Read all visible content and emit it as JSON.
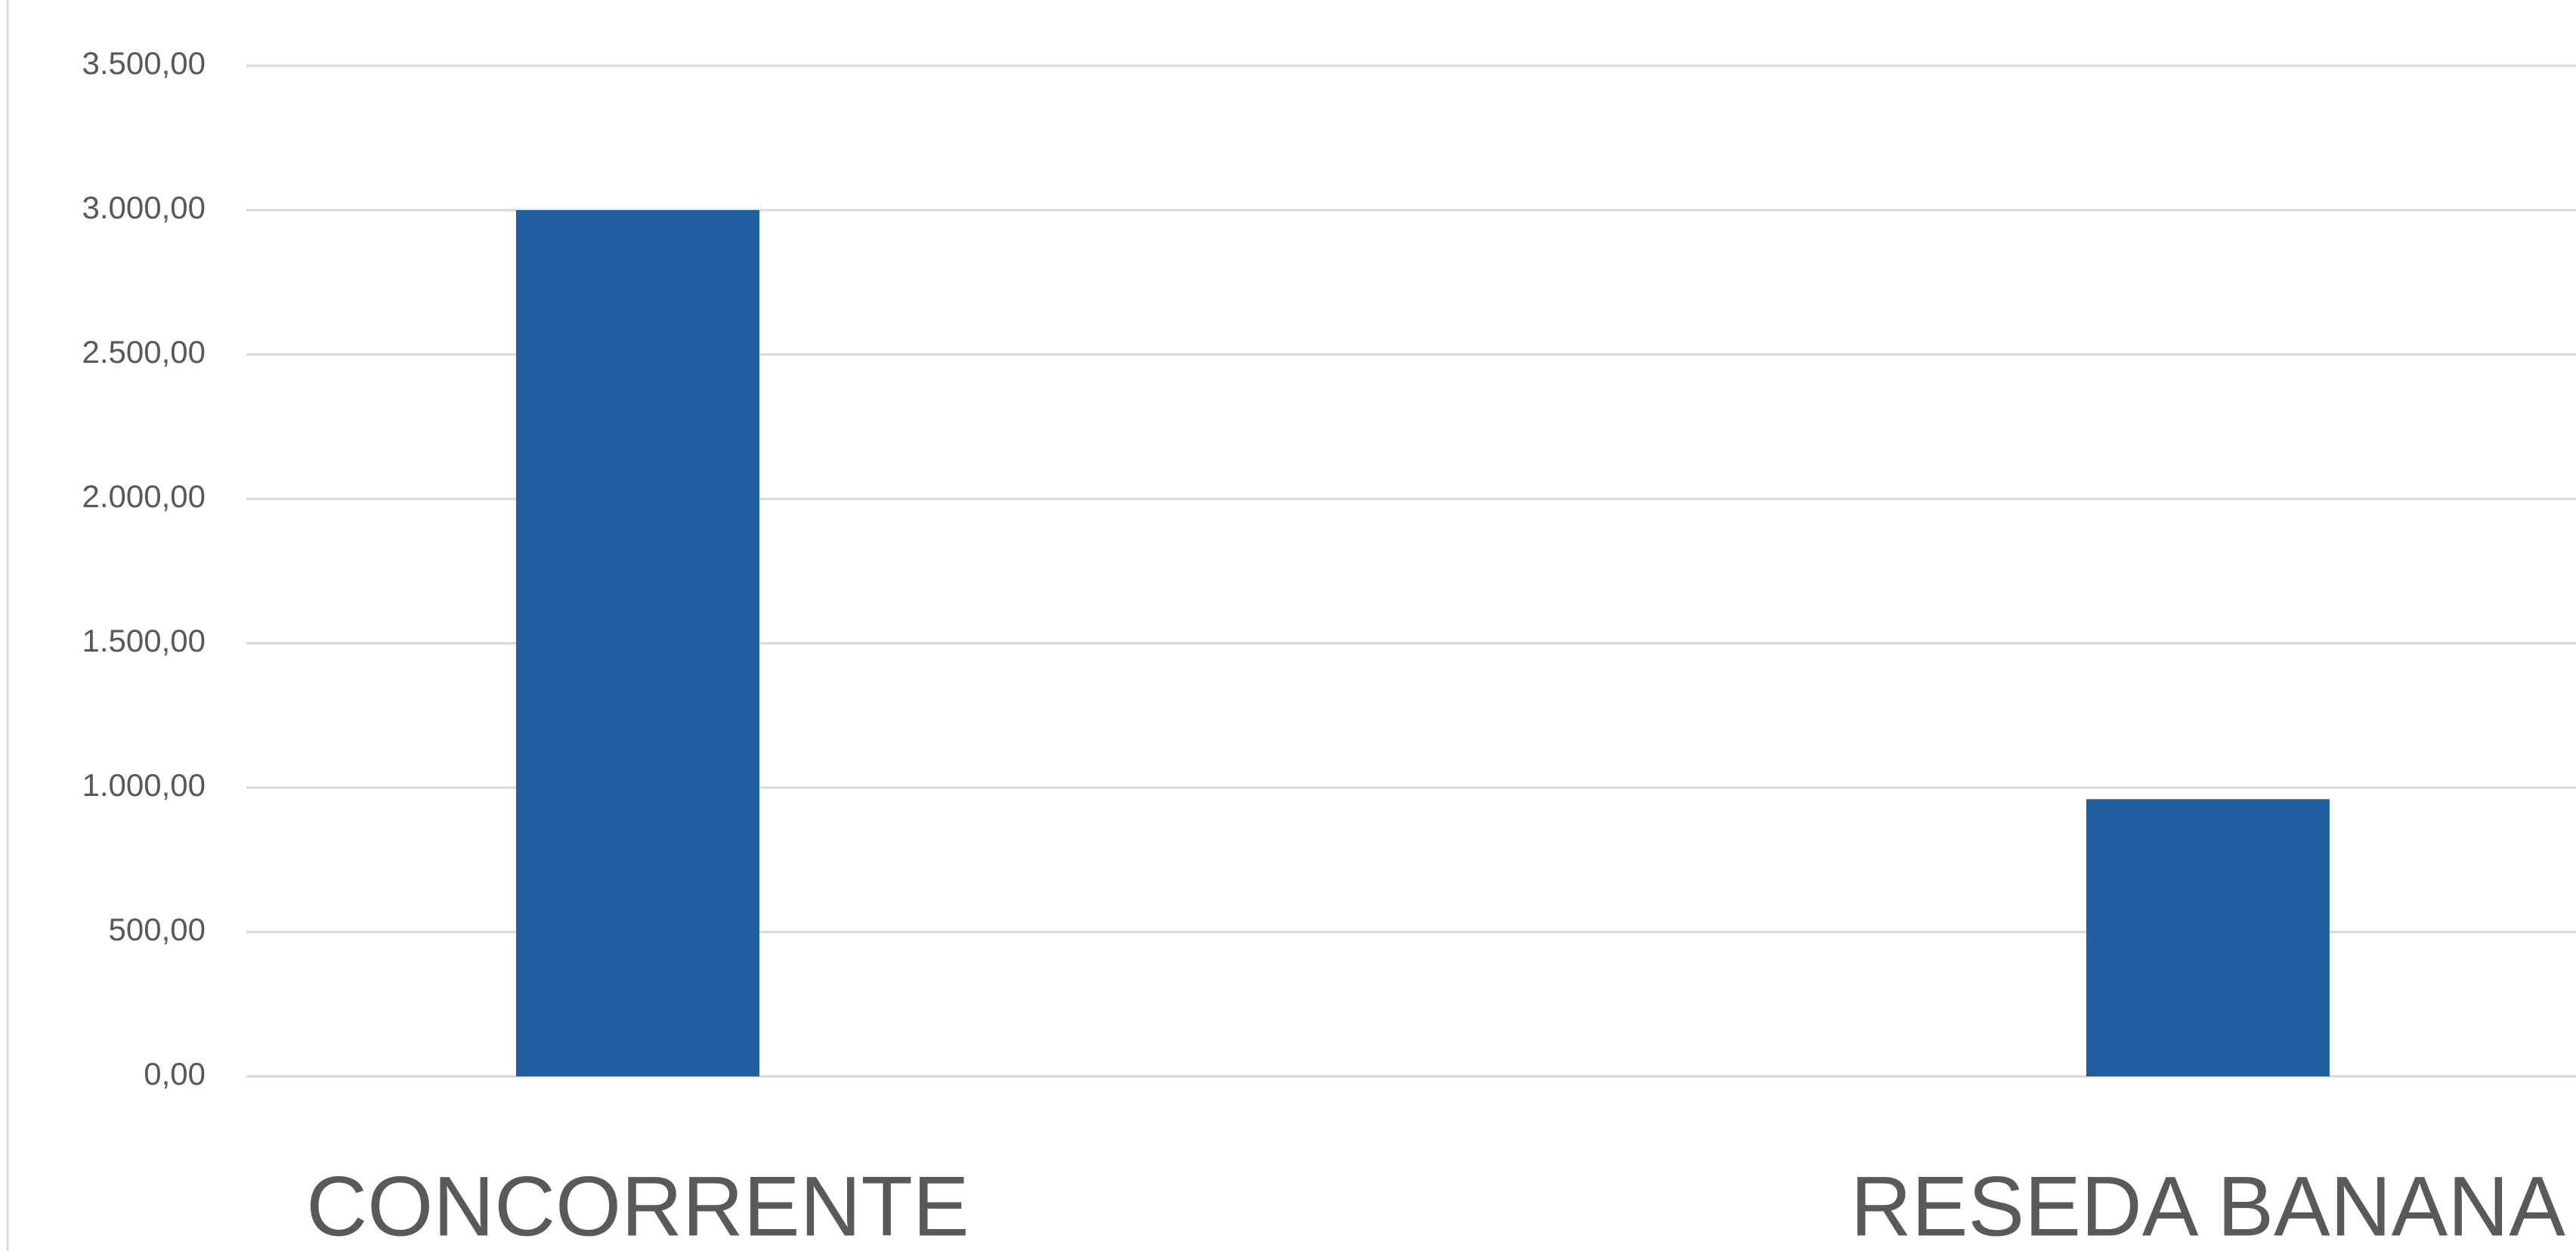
{
  "chart_data": {
    "type": "bar",
    "categories": [
      "CONCORRENTE",
      "RESEDA BANANA"
    ],
    "values": [
      3000,
      960
    ],
    "color": "#1f5f9f",
    "ylim": [
      0,
      3500
    ],
    "yticks": [
      {
        "value": 0,
        "label": "0,00"
      },
      {
        "value": 500,
        "label": "500,00"
      },
      {
        "value": 1000,
        "label": "1.000,00"
      },
      {
        "value": 1500,
        "label": "1.500,00"
      },
      {
        "value": 2000,
        "label": "2.000,00"
      },
      {
        "value": 2500,
        "label": "2.500,00"
      },
      {
        "value": 3000,
        "label": "3.000,00"
      },
      {
        "value": 3500,
        "label": "3.500,00"
      }
    ],
    "grid": true
  }
}
